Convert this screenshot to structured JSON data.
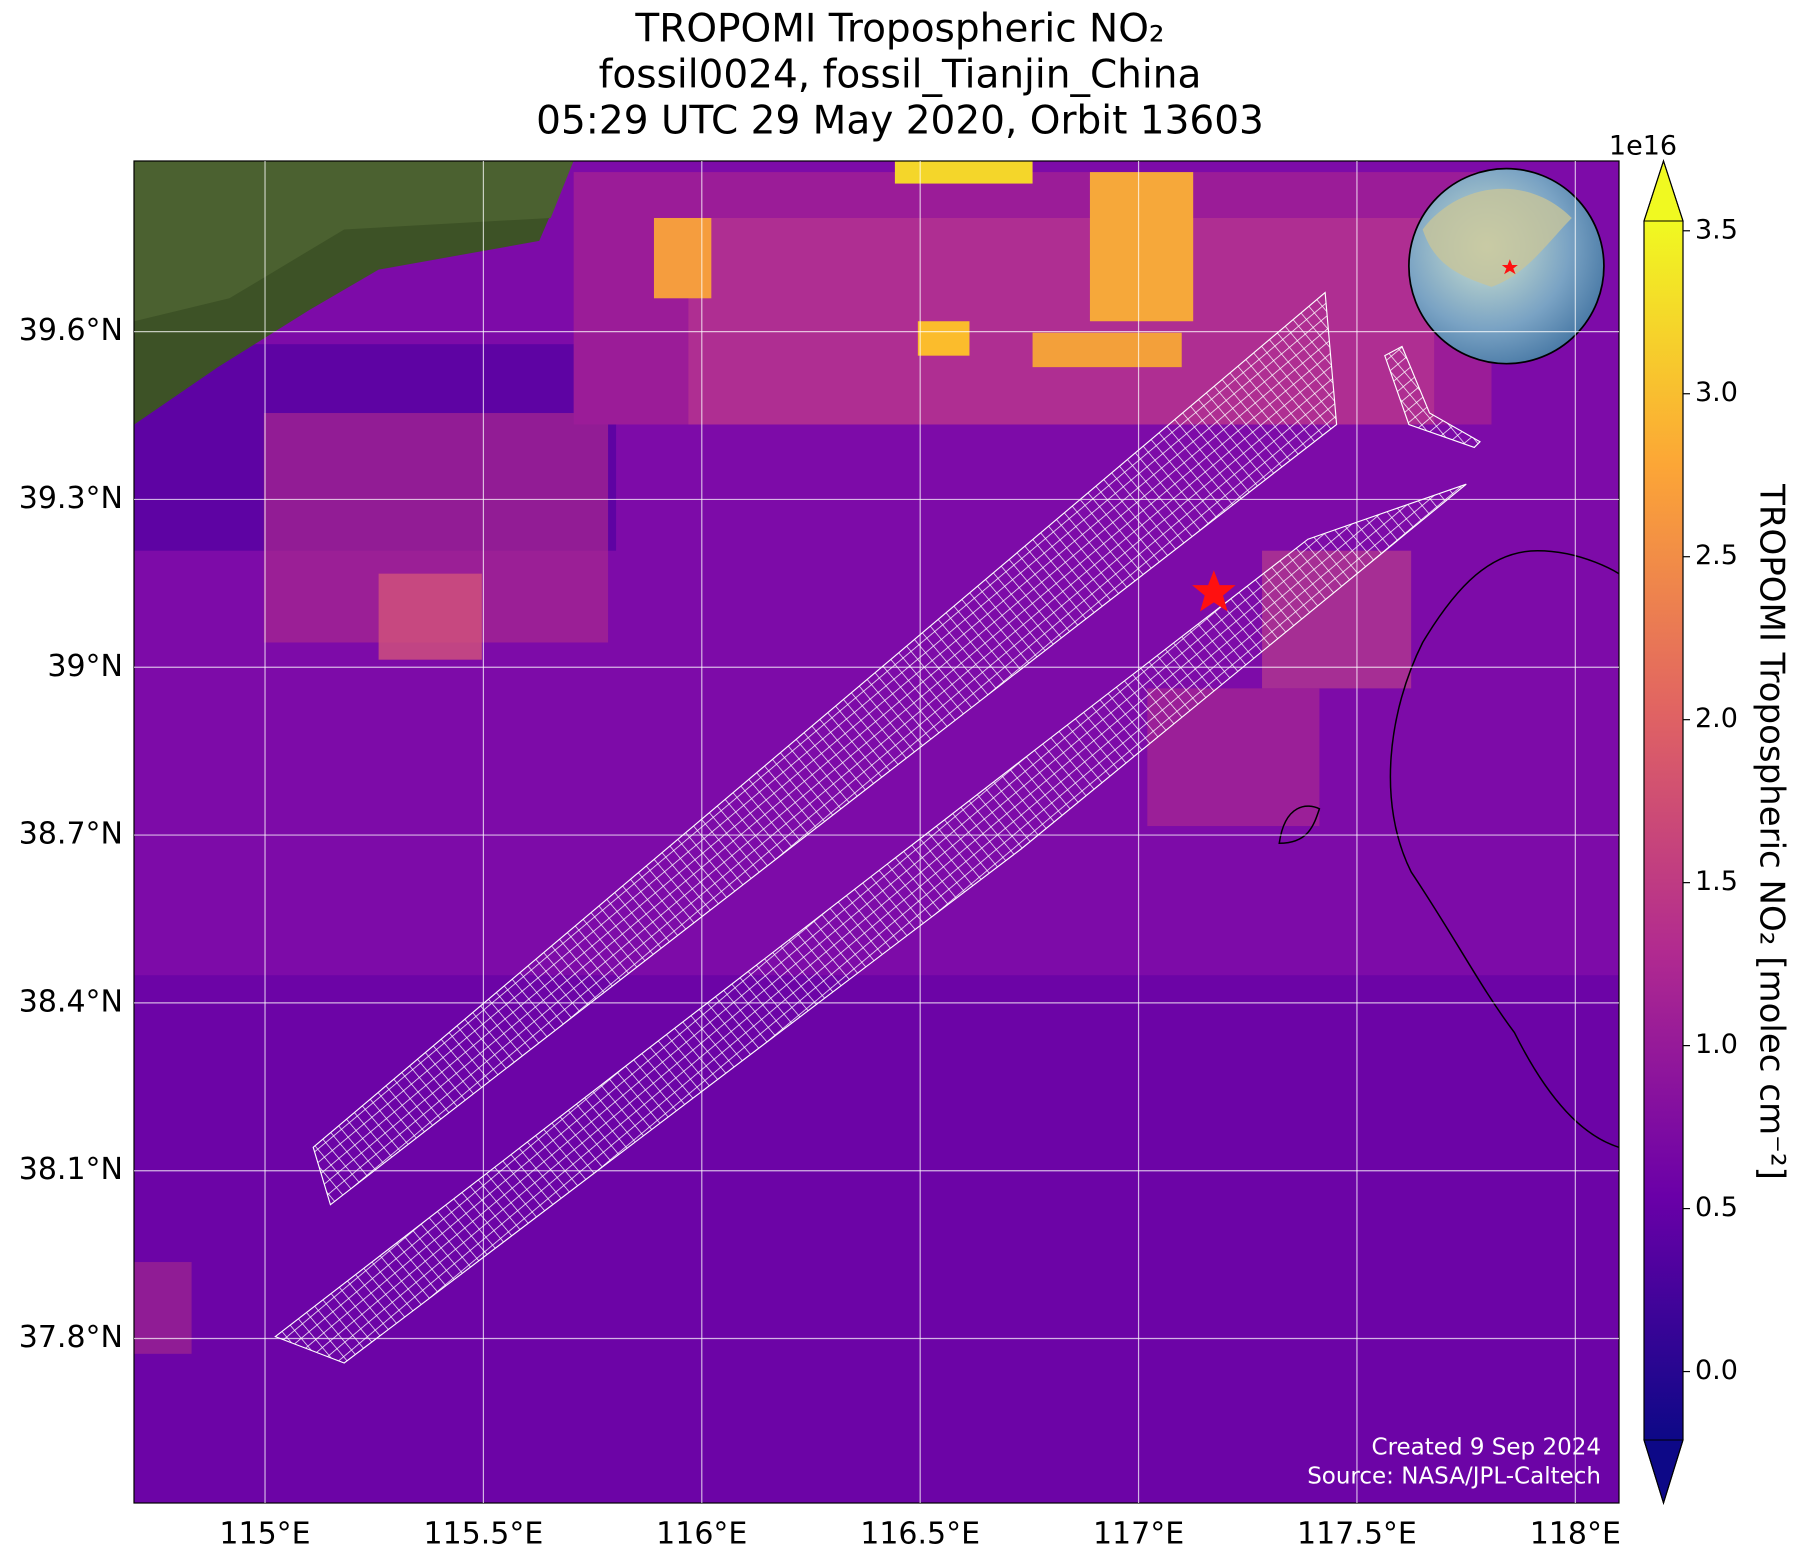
{
  "chart_data": {
    "type": "map",
    "title": [
      "TROPOMI Tropospheric NO₂",
      "fossil0024, fossil_Tianjin_China",
      "05:29 UTC 29 May 2020, Orbit 13603"
    ],
    "xlim": [
      114.7,
      118.1
    ],
    "xticks": [
      {
        "value": 115,
        "label": "115°E"
      },
      {
        "value": 115.5,
        "label": "115.5°E"
      },
      {
        "value": 116,
        "label": "116°E"
      },
      {
        "value": 116.5,
        "label": "116.5°E"
      },
      {
        "value": 117,
        "label": "117°E"
      },
      {
        "value": 117.5,
        "label": "117.5°E"
      },
      {
        "value": 118,
        "label": "118°E"
      }
    ],
    "ylim": [
      37.506,
      39.905
    ],
    "yticks": [
      {
        "value": 37.8,
        "label": "37.8°N"
      },
      {
        "value": 38.1,
        "label": "38.1°N"
      },
      {
        "value": 38.4,
        "label": "38.4°N"
      },
      {
        "value": 38.7,
        "label": "38.7°N"
      },
      {
        "value": 39,
        "label": "39°N"
      },
      {
        "value": 39.3,
        "label": "39.3°N"
      },
      {
        "value": 39.6,
        "label": "39.6°N"
      }
    ],
    "grid": true,
    "colorbar": {
      "label": "TROPOMI Tropospheric NO₂ [molec cm⁻²]",
      "offset_label": "1e16",
      "clim": [
        -0.21,
        3.53
      ],
      "colors": [
        "#0d0887",
        "#6a00a8",
        "#b12a90",
        "#e16462",
        "#fca636",
        "#f0f921"
      ],
      "ticks": [
        {
          "value": 0,
          "label": "0.0"
        },
        0.5,
        {
          "value": 1,
          "label": "1.0"
        },
        1.5,
        {
          "value": 2,
          "label": "2.0"
        },
        2.5,
        {
          "value": 3,
          "label": "3.0"
        },
        3.5
      ]
    },
    "annotations": [
      "Created 9 Sep 2024",
      "Source: NASA/JPL-Caltech"
    ]
  }
}
